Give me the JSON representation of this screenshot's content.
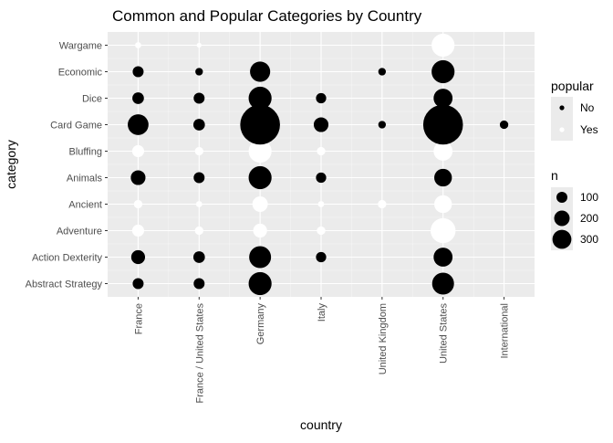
{
  "chart_data": {
    "type": "scatter",
    "title": "Common and Popular Categories by Country",
    "xlabel": "country",
    "ylabel": "category",
    "x_categories": [
      "France",
      "France / United States",
      "Germany",
      "Italy",
      "United Kingdom",
      "United States",
      "International"
    ],
    "y_categories": [
      "Abstract Strategy",
      "Action  Dexterity",
      "Adventure",
      "Ancient",
      "Animals",
      "Bluffing",
      "Card Game",
      "Dice",
      "Economic",
      "Wargame"
    ],
    "grid": true,
    "legend": {
      "placement": "right",
      "color_title": "popular",
      "color_entries": [
        {
          "label": "No",
          "color": "#000000"
        },
        {
          "label": "Yes",
          "color": "#ffffff"
        }
      ],
      "size_title": "n",
      "size_entries": [
        {
          "label": "100",
          "value": 100
        },
        {
          "label": "200",
          "value": 200
        },
        {
          "label": "300",
          "value": 300
        }
      ]
    },
    "colors": {
      "No": "#000000",
      "Yes": "#ffffff",
      "panel": "#ebebeb",
      "grid": "#ffffff"
    },
    "points": [
      {
        "x": "France",
        "y": "Abstract Strategy",
        "n": 25,
        "popular": "No"
      },
      {
        "x": "France",
        "y": "Action  Dexterity",
        "n": 40,
        "popular": "No"
      },
      {
        "x": "France",
        "y": "Adventure",
        "n": 30,
        "popular": "Yes"
      },
      {
        "x": "France",
        "y": "Ancient",
        "n": 15,
        "popular": "Yes"
      },
      {
        "x": "France",
        "y": "Animals",
        "n": 45,
        "popular": "No"
      },
      {
        "x": "France",
        "y": "Bluffing",
        "n": 30,
        "popular": "Yes"
      },
      {
        "x": "France",
        "y": "Card Game",
        "n": 90,
        "popular": "No"
      },
      {
        "x": "France",
        "y": "Dice",
        "n": 28,
        "popular": "No"
      },
      {
        "x": "France",
        "y": "Economic",
        "n": 25,
        "popular": "No"
      },
      {
        "x": "France",
        "y": "Wargame",
        "n": 8,
        "popular": "Yes"
      },
      {
        "x": "France / United States",
        "y": "Abstract Strategy",
        "n": 25,
        "popular": "No"
      },
      {
        "x": "France / United States",
        "y": "Action  Dexterity",
        "n": 28,
        "popular": "No"
      },
      {
        "x": "France / United States",
        "y": "Adventure",
        "n": 15,
        "popular": "Yes"
      },
      {
        "x": "France / United States",
        "y": "Ancient",
        "n": 8,
        "popular": "Yes"
      },
      {
        "x": "France / United States",
        "y": "Animals",
        "n": 25,
        "popular": "No"
      },
      {
        "x": "France / United States",
        "y": "Bluffing",
        "n": 15,
        "popular": "Yes"
      },
      {
        "x": "France / United States",
        "y": "Card Game",
        "n": 28,
        "popular": "No"
      },
      {
        "x": "France / United States",
        "y": "Dice",
        "n": 25,
        "popular": "No"
      },
      {
        "x": "France / United States",
        "y": "Economic",
        "n": 12,
        "popular": "No"
      },
      {
        "x": "France / United States",
        "y": "Wargame",
        "n": 5,
        "popular": "Yes"
      },
      {
        "x": "Germany",
        "y": "Abstract Strategy",
        "n": 110,
        "popular": "No"
      },
      {
        "x": "Germany",
        "y": "Action  Dexterity",
        "n": 100,
        "popular": "No"
      },
      {
        "x": "Germany",
        "y": "Adventure",
        "n": 40,
        "popular": "Yes"
      },
      {
        "x": "Germany",
        "y": "Ancient",
        "n": 50,
        "popular": "Yes"
      },
      {
        "x": "Germany",
        "y": "Animals",
        "n": 110,
        "popular": "No"
      },
      {
        "x": "Germany",
        "y": "Bluffing",
        "n": 110,
        "popular": "Yes"
      },
      {
        "x": "Germany",
        "y": "Card Game",
        "n": 330,
        "popular": "No"
      },
      {
        "x": "Germany",
        "y": "Dice",
        "n": 110,
        "popular": "No"
      },
      {
        "x": "Germany",
        "y": "Economic",
        "n": 85,
        "popular": "No"
      },
      {
        "x": "Italy",
        "y": "Action  Dexterity",
        "n": 22,
        "popular": "No"
      },
      {
        "x": "Italy",
        "y": "Adventure",
        "n": 15,
        "popular": "Yes"
      },
      {
        "x": "Italy",
        "y": "Ancient",
        "n": 8,
        "popular": "Yes"
      },
      {
        "x": "Italy",
        "y": "Animals",
        "n": 22,
        "popular": "No"
      },
      {
        "x": "Italy",
        "y": "Bluffing",
        "n": 15,
        "popular": "Yes"
      },
      {
        "x": "Italy",
        "y": "Card Game",
        "n": 45,
        "popular": "No"
      },
      {
        "x": "Italy",
        "y": "Dice",
        "n": 22,
        "popular": "No"
      },
      {
        "x": "United Kingdom",
        "y": "Ancient",
        "n": 15,
        "popular": "Yes"
      },
      {
        "x": "United Kingdom",
        "y": "Card Game",
        "n": 12,
        "popular": "No"
      },
      {
        "x": "United Kingdom",
        "y": "Economic",
        "n": 12,
        "popular": "No"
      },
      {
        "x": "United States",
        "y": "Abstract Strategy",
        "n": 100,
        "popular": "No"
      },
      {
        "x": "United States",
        "y": "Action  Dexterity",
        "n": 75,
        "popular": "No"
      },
      {
        "x": "United States",
        "y": "Adventure",
        "n": 130,
        "popular": "Yes"
      },
      {
        "x": "United States",
        "y": "Ancient",
        "n": 65,
        "popular": "Yes"
      },
      {
        "x": "United States",
        "y": "Animals",
        "n": 65,
        "popular": "No"
      },
      {
        "x": "United States",
        "y": "Bluffing",
        "n": 75,
        "popular": "Yes"
      },
      {
        "x": "United States",
        "y": "Card Game",
        "n": 330,
        "popular": "No"
      },
      {
        "x": "United States",
        "y": "Dice",
        "n": 75,
        "popular": "No"
      },
      {
        "x": "United States",
        "y": "Economic",
        "n": 110,
        "popular": "No"
      },
      {
        "x": "United States",
        "y": "Wargame",
        "n": 110,
        "popular": "Yes"
      },
      {
        "x": "International",
        "y": "Card Game",
        "n": 15,
        "popular": "No"
      }
    ]
  }
}
